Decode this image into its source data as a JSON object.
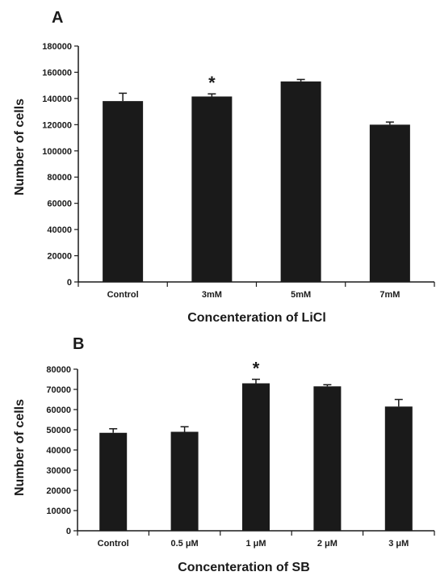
{
  "chart_data": [
    {
      "type": "bar",
      "panel": "A",
      "categories": [
        "Control",
        "3mM",
        "5mM",
        "7mM"
      ],
      "values": [
        138000,
        141500,
        153000,
        120000
      ],
      "errors": [
        6000,
        2000,
        1500,
        2000
      ],
      "significance": [
        "",
        "*",
        "",
        ""
      ],
      "xlabel": "Concenteration of LiCl",
      "ylabel": "Number of cells",
      "ylim": [
        0,
        180000
      ],
      "yticks": [
        "0",
        "20000",
        "40000",
        "60000",
        "80000",
        "100000",
        "120000",
        "140000",
        "160000",
        "180000"
      ],
      "grid": false,
      "color": "#1a1a1a"
    },
    {
      "type": "bar",
      "panel": "B",
      "categories": [
        "Control",
        "0.5 μM",
        "1 μM",
        "2 μM",
        "3 μM"
      ],
      "values": [
        48500,
        49000,
        73000,
        71500,
        61500
      ],
      "errors": [
        2000,
        2500,
        2000,
        800,
        3500
      ],
      "significance": [
        "",
        "",
        "*",
        "",
        ""
      ],
      "xlabel": "Concenteration of SB",
      "ylabel": "Number of cells",
      "ylim": [
        0,
        80000
      ],
      "yticks": [
        "0",
        "10000",
        "20000",
        "30000",
        "40000",
        "50000",
        "60000",
        "70000",
        "80000"
      ],
      "grid": false,
      "color": "#1a1a1a"
    }
  ]
}
